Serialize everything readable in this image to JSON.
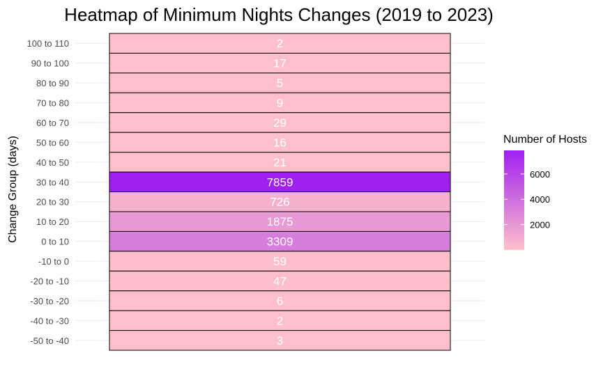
{
  "chart_data": {
    "type": "heatmap",
    "title": "Heatmap of Minimum Nights Changes (2019 to 2023)",
    "xlabel": "",
    "ylabel": "Change Group (days)",
    "categories": [
      "100 to 110",
      "90 to 100",
      "80 to 90",
      "70 to 80",
      "60 to 70",
      "50 to 60",
      "40 to 50",
      "30 to 40",
      "20 to 30",
      "10 to 20",
      "0 to 10",
      "-10 to 0",
      "-20 to -10",
      "-30 to -20",
      "-40 to -30",
      "-50 to -40"
    ],
    "values": [
      2,
      17,
      5,
      9,
      29,
      16,
      21,
      7859,
      726,
      1875,
      3309,
      59,
      47,
      6,
      2,
      3
    ],
    "grid": true,
    "legend": {
      "title": "Number of Hosts",
      "position": "right",
      "ticks": [
        2000,
        4000,
        6000
      ],
      "range": [
        2,
        7859
      ]
    },
    "colors": {
      "low": "#FFC0CB",
      "high": "#A020F0",
      "border": "#000000",
      "cell_text": "#FFFFFF",
      "grid": "#EBEBEB"
    }
  }
}
